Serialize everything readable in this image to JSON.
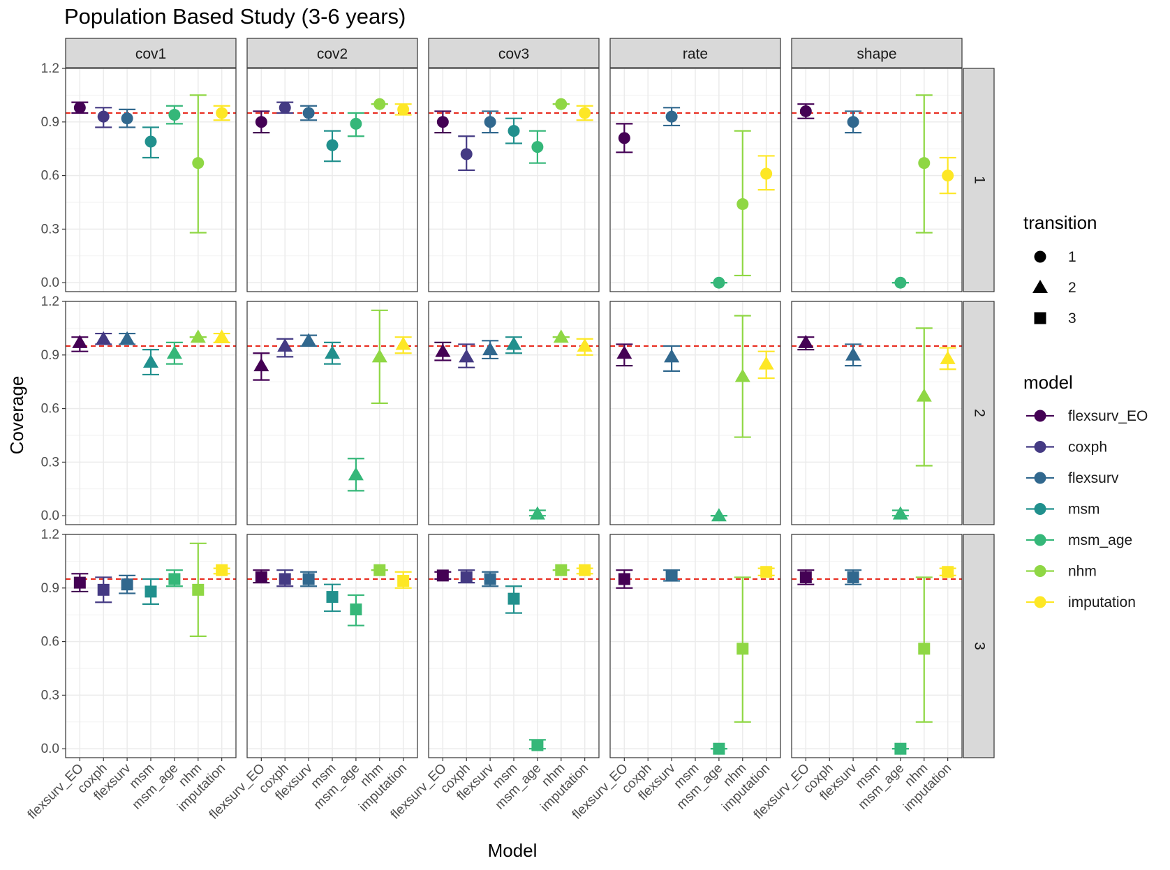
{
  "chart_data": {
    "type": "scatter",
    "title": "Population Based Study (3-6 years)",
    "xlabel": "Model",
    "ylabel": "Coverage",
    "ylim": [
      -0.05,
      1.2
    ],
    "yticks": [
      "0.0",
      "0.3",
      "0.6",
      "0.9",
      "1.2"
    ],
    "reference_line": 0.95,
    "reference_color": "#e8291c",
    "categories": [
      "flexsurv_EO",
      "coxph",
      "flexsurv",
      "msm",
      "msm_age",
      "nhm",
      "imputation"
    ],
    "columns": [
      "cov1",
      "cov2",
      "cov3",
      "rate",
      "shape"
    ],
    "rows": [
      "1",
      "2",
      "3"
    ],
    "grid": true,
    "legend_position": "right",
    "legend": {
      "transition": {
        "title": "transition",
        "items": [
          "1",
          "2",
          "3"
        ],
        "shapes": [
          "circle",
          "triangle",
          "square"
        ]
      },
      "model": {
        "title": "model",
        "items": [
          "flexsurv_EO",
          "coxph",
          "flexsurv",
          "msm",
          "msm_age",
          "nhm",
          "imputation"
        ],
        "colors": [
          "#440154",
          "#443a83",
          "#31688e",
          "#21908d",
          "#35b779",
          "#8fd744",
          "#fde725"
        ]
      }
    },
    "panels": [
      {
        "col": "cov1",
        "row": "1",
        "points": [
          [
            0,
            0.98,
            0.95,
            1.01
          ],
          [
            1,
            0.93,
            0.87,
            0.98
          ],
          [
            2,
            0.92,
            0.87,
            0.97
          ],
          [
            3,
            0.79,
            0.7,
            0.87
          ],
          [
            4,
            0.94,
            0.89,
            0.99
          ],
          [
            5,
            0.67,
            0.28,
            1.05
          ],
          [
            6,
            0.95,
            0.91,
            0.99
          ]
        ]
      },
      {
        "col": "cov2",
        "row": "1",
        "points": [
          [
            0,
            0.9,
            0.84,
            0.96
          ],
          [
            1,
            0.98,
            0.95,
            1.01
          ],
          [
            2,
            0.95,
            0.91,
            0.99
          ],
          [
            3,
            0.77,
            0.68,
            0.85
          ],
          [
            4,
            0.89,
            0.82,
            0.95
          ],
          [
            5,
            1.0,
            1.0,
            1.0
          ],
          [
            6,
            0.97,
            0.94,
            1.0
          ]
        ]
      },
      {
        "col": "cov3",
        "row": "1",
        "points": [
          [
            0,
            0.9,
            0.84,
            0.96
          ],
          [
            1,
            0.72,
            0.63,
            0.82
          ],
          [
            2,
            0.9,
            0.84,
            0.96
          ],
          [
            3,
            0.85,
            0.78,
            0.92
          ],
          [
            4,
            0.76,
            0.67,
            0.85
          ],
          [
            5,
            1.0,
            1.0,
            1.0
          ],
          [
            6,
            0.95,
            0.91,
            0.99
          ]
        ]
      },
      {
        "col": "rate",
        "row": "1",
        "points": [
          [
            0,
            0.81,
            0.73,
            0.89
          ],
          [
            2,
            0.93,
            0.88,
            0.98
          ],
          [
            4,
            0.0,
            0.0,
            0.0
          ],
          [
            5,
            0.44,
            0.04,
            0.85
          ],
          [
            6,
            0.61,
            0.52,
            0.71
          ]
        ]
      },
      {
        "col": "shape",
        "row": "1",
        "points": [
          [
            0,
            0.96,
            0.92,
            1.0
          ],
          [
            2,
            0.9,
            0.84,
            0.96
          ],
          [
            4,
            0.0,
            0.0,
            0.0
          ],
          [
            5,
            0.67,
            0.28,
            1.05
          ],
          [
            6,
            0.6,
            0.5,
            0.7
          ]
        ]
      },
      {
        "col": "cov1",
        "row": "2",
        "points": [
          [
            0,
            0.97,
            0.92,
            1.0
          ],
          [
            1,
            0.99,
            0.96,
            1.02
          ],
          [
            2,
            0.99,
            0.96,
            1.02
          ],
          [
            3,
            0.86,
            0.79,
            0.93
          ],
          [
            4,
            0.91,
            0.85,
            0.97
          ],
          [
            5,
            1.0,
            1.0,
            1.0
          ],
          [
            6,
            1.0,
            0.97,
            1.02
          ]
        ]
      },
      {
        "col": "cov2",
        "row": "2",
        "points": [
          [
            0,
            0.84,
            0.76,
            0.91
          ],
          [
            1,
            0.95,
            0.89,
            0.99
          ],
          [
            2,
            0.98,
            0.95,
            1.01
          ],
          [
            3,
            0.91,
            0.85,
            0.97
          ],
          [
            4,
            0.23,
            0.14,
            0.32
          ],
          [
            5,
            0.89,
            0.63,
            1.15
          ],
          [
            6,
            0.96,
            0.91,
            1.0
          ]
        ]
      },
      {
        "col": "cov3",
        "row": "2",
        "points": [
          [
            0,
            0.92,
            0.87,
            0.97
          ],
          [
            1,
            0.89,
            0.83,
            0.96
          ],
          [
            2,
            0.93,
            0.88,
            0.98
          ],
          [
            3,
            0.96,
            0.91,
            1.0
          ],
          [
            4,
            0.01,
            0.0,
            0.03
          ],
          [
            5,
            1.0,
            1.0,
            1.0
          ],
          [
            6,
            0.95,
            0.9,
            0.99
          ]
        ]
      },
      {
        "col": "rate",
        "row": "2",
        "points": [
          [
            0,
            0.91,
            0.84,
            0.96
          ],
          [
            2,
            0.89,
            0.81,
            0.95
          ],
          [
            4,
            0.0,
            0.0,
            0.0
          ],
          [
            5,
            0.78,
            0.44,
            1.12
          ],
          [
            6,
            0.85,
            0.77,
            0.92
          ]
        ]
      },
      {
        "col": "shape",
        "row": "2",
        "points": [
          [
            0,
            0.97,
            0.93,
            1.0
          ],
          [
            2,
            0.9,
            0.84,
            0.96
          ],
          [
            4,
            0.01,
            0.0,
            0.03
          ],
          [
            5,
            0.67,
            0.28,
            1.05
          ],
          [
            6,
            0.88,
            0.82,
            0.94
          ]
        ]
      },
      {
        "col": "cov1",
        "row": "3",
        "points": [
          [
            0,
            0.93,
            0.88,
            0.98
          ],
          [
            1,
            0.89,
            0.82,
            0.96
          ],
          [
            2,
            0.92,
            0.87,
            0.97
          ],
          [
            3,
            0.88,
            0.81,
            0.95
          ],
          [
            4,
            0.95,
            0.91,
            1.0
          ],
          [
            5,
            0.89,
            0.63,
            1.15
          ],
          [
            6,
            1.0,
            0.98,
            1.01
          ]
        ]
      },
      {
        "col": "cov2",
        "row": "3",
        "points": [
          [
            0,
            0.96,
            0.93,
            1.0
          ],
          [
            1,
            0.95,
            0.91,
            1.0
          ],
          [
            2,
            0.95,
            0.91,
            0.99
          ],
          [
            3,
            0.85,
            0.77,
            0.92
          ],
          [
            4,
            0.78,
            0.69,
            0.86
          ],
          [
            5,
            1.0,
            1.0,
            1.0
          ],
          [
            6,
            0.94,
            0.9,
            0.99
          ]
        ]
      },
      {
        "col": "cov3",
        "row": "3",
        "points": [
          [
            0,
            0.97,
            0.95,
            0.99
          ],
          [
            1,
            0.96,
            0.93,
            1.0
          ],
          [
            2,
            0.95,
            0.91,
            0.99
          ],
          [
            3,
            0.84,
            0.76,
            0.91
          ],
          [
            4,
            0.02,
            0.0,
            0.05
          ],
          [
            5,
            1.0,
            1.0,
            1.0
          ],
          [
            6,
            1.0,
            0.98,
            1.01
          ]
        ]
      },
      {
        "col": "rate",
        "row": "3",
        "points": [
          [
            0,
            0.95,
            0.9,
            1.0
          ],
          [
            2,
            0.97,
            0.94,
            1.0
          ],
          [
            4,
            0.0,
            0.0,
            0.0
          ],
          [
            5,
            0.56,
            0.15,
            0.96
          ],
          [
            6,
            0.99,
            0.97,
            1.01
          ]
        ]
      },
      {
        "col": "shape",
        "row": "3",
        "points": [
          [
            0,
            0.96,
            0.92,
            1.0
          ],
          [
            2,
            0.96,
            0.92,
            1.0
          ],
          [
            4,
            0.0,
            0.0,
            0.0
          ],
          [
            5,
            0.56,
            0.15,
            0.96
          ],
          [
            6,
            0.99,
            0.97,
            1.01
          ]
        ]
      }
    ]
  }
}
